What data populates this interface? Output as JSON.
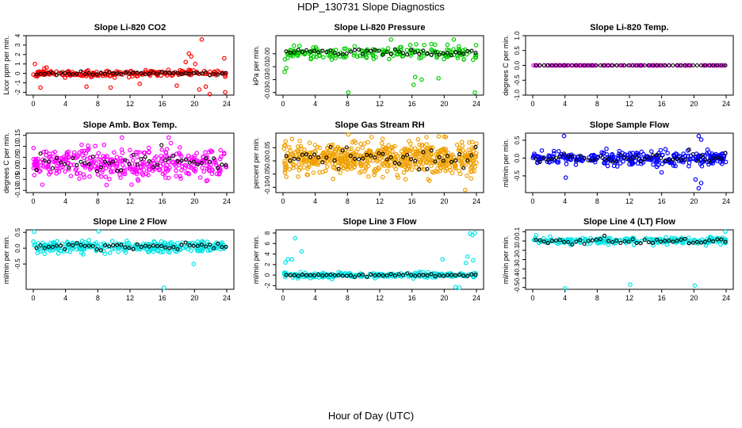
{
  "page": {
    "title": "HDP_130731  Slope Diagnostics",
    "xlabel": "Hour of Day (UTC)"
  },
  "chart_data": [
    {
      "type": "scatter",
      "title": "Slope Li-820 CO2",
      "ylabel": "Licor ppm per min.",
      "xlim": [
        0,
        24
      ],
      "ylim": [
        -2.3,
        4.0
      ],
      "yticks": [
        -2,
        -1,
        0,
        1,
        2,
        3,
        4
      ],
      "xticks": [
        0,
        4,
        8,
        12,
        16,
        20,
        24
      ],
      "color": "#ff0000",
      "base": 0,
      "spread": 0.35,
      "overlay_spread": 0.15,
      "outliers": [
        [
          0.2,
          1.0
        ],
        [
          0.9,
          -1.5
        ],
        [
          6.6,
          -1.4
        ],
        [
          9.6,
          -1.5
        ],
        [
          13.2,
          -1.1
        ],
        [
          17.8,
          -1.3
        ],
        [
          18.9,
          1.2
        ],
        [
          19.3,
          2.1
        ],
        [
          19.6,
          1.8
        ],
        [
          20.1,
          1.0
        ],
        [
          20.6,
          -1.7
        ],
        [
          20.9,
          3.6
        ],
        [
          21.4,
          -1.4
        ],
        [
          21.9,
          -2.2
        ],
        [
          23.7,
          1.6
        ],
        [
          23.8,
          -2.0
        ]
      ],
      "n": 220,
      "seed": 11
    },
    {
      "type": "scatter",
      "title": "Slope Li-820 Pressure",
      "ylabel": "kPa per min.",
      "xlim": [
        0,
        24
      ],
      "ylim": [
        -0.032,
        0.014
      ],
      "yticks": [
        -0.03,
        -0.02,
        -0.01,
        0.0
      ],
      "ytick_labels": [
        "-0.03",
        "-0.02",
        "-0.01",
        "0.00"
      ],
      "xticks": [
        0,
        4,
        8,
        12,
        16,
        20,
        24
      ],
      "color": "#00cc00",
      "base": 0.001,
      "spread": 0.005,
      "overlay_spread": 0.002,
      "outliers": [
        [
          0.2,
          -0.014
        ],
        [
          0.4,
          -0.011
        ],
        [
          8.1,
          -0.03
        ],
        [
          16.2,
          -0.024
        ],
        [
          16.4,
          -0.018
        ],
        [
          17.2,
          -0.02
        ],
        [
          19.3,
          -0.019
        ],
        [
          23.8,
          -0.03
        ],
        [
          13.4,
          0.011
        ],
        [
          21.2,
          0.011
        ]
      ],
      "n": 200,
      "seed": 23
    },
    {
      "type": "scatter",
      "title": "Slope Li-820 Temp.",
      "ylabel": "degrees C per min.",
      "xlim": [
        0,
        24
      ],
      "ylim": [
        -1.0,
        1.0
      ],
      "yticks": [
        -1.0,
        -0.5,
        0.0,
        0.5,
        1.0
      ],
      "ytick_labels": [
        "-1.0",
        "-0.5",
        "0.0",
        "0.5",
        "1.0"
      ],
      "xticks": [
        0,
        4,
        8,
        12,
        16,
        20,
        24
      ],
      "color": "#ff00ff",
      "base": 0,
      "spread": 0.0,
      "overlay_spread": 0.0,
      "outliers": [],
      "n": 120,
      "seed": 31
    },
    {
      "type": "scatter",
      "title": "Slope Amb. Box Temp.",
      "ylabel": "degrees C per min.",
      "xlim": [
        0,
        24
      ],
      "ylim": [
        -0.11,
        0.16
      ],
      "yticks": [
        -0.1,
        -0.05,
        0.0,
        0.05,
        0.1,
        0.15
      ],
      "ytick_labels": [
        "-0.10",
        "-0.05",
        "0.00",
        "0.05",
        "0.10",
        "0.15"
      ],
      "xticks": [
        0,
        4,
        8,
        12,
        16,
        20,
        24
      ],
      "color": "#ff00ff",
      "base": 0.02,
      "spread": 0.07,
      "overlay_spread": 0.05,
      "outliers": [
        [
          11.0,
          0.14
        ],
        [
          16.8,
          0.14
        ]
      ],
      "n": 380,
      "seed": 47
    },
    {
      "type": "scatter",
      "title": "Slope Gas Stream RH",
      "ylabel": "percent per min.",
      "xlim": [
        0,
        24
      ],
      "ylim": [
        -0.12,
        0.105
      ],
      "yticks": [
        -0.1,
        -0.05,
        0.0,
        0.05
      ],
      "ytick_labels": [
        "-0.10",
        "-0.05",
        "0.00",
        "0.05"
      ],
      "xticks": [
        0,
        4,
        8,
        12,
        16,
        20,
        24
      ],
      "color": "#f0a000",
      "base": 0.01,
      "spread": 0.06,
      "overlay_spread": 0.04,
      "outliers": [
        [
          8.1,
          0.1
        ],
        [
          11.0,
          0.09
        ],
        [
          17.8,
          0.09
        ],
        [
          20.2,
          0.09
        ],
        [
          22.6,
          -0.11
        ]
      ],
      "n": 600,
      "seed": 53
    },
    {
      "type": "scatter",
      "title": "Slope Sample Flow",
      "ylabel": "ml/min per min.",
      "xlim": [
        0,
        24
      ],
      "ylim": [
        -0.97,
        0.7
      ],
      "yticks": [
        -0.5,
        0.0,
        0.5
      ],
      "ytick_labels": [
        "-0.5",
        "0.0",
        "0.5"
      ],
      "xticks": [
        0,
        4,
        8,
        12,
        16,
        20,
        24
      ],
      "color": "#0000ff",
      "base": 0.0,
      "spread": 0.2,
      "overlay_spread": 0.15,
      "outliers": [
        [
          3.9,
          0.62
        ],
        [
          20.6,
          0.62
        ],
        [
          20.9,
          0.52
        ],
        [
          20.6,
          -0.85
        ],
        [
          20.9,
          -0.7
        ],
        [
          4.1,
          -0.55
        ],
        [
          20.2,
          -0.6
        ]
      ],
      "n": 320,
      "seed": 61
    },
    {
      "type": "scatter",
      "title": "Slope Line 2 Flow",
      "ylabel": "ml/min per min.",
      "xlim": [
        0,
        24
      ],
      "ylim": [
        -1.3,
        0.58
      ],
      "yticks": [
        -0.5,
        0.0,
        0.5
      ],
      "ytick_labels": [
        "-0.5",
        "0.0",
        "0.5"
      ],
      "xticks": [
        0,
        4,
        8,
        12,
        16,
        20,
        24
      ],
      "color": "#00e5e5",
      "base": 0.05,
      "spread": 0.18,
      "overlay_spread": 0.1,
      "outliers": [
        [
          0.1,
          0.52
        ],
        [
          8.1,
          0.53
        ],
        [
          16.2,
          -1.25
        ],
        [
          19.9,
          -0.5
        ]
      ],
      "n": 300,
      "seed": 71
    },
    {
      "type": "scatter",
      "title": "Slope Line 3 Flow",
      "ylabel": "ml/min per min.",
      "xlim": [
        0,
        24
      ],
      "ylim": [
        -2.7,
        8.6
      ],
      "yticks": [
        -2,
        0,
        2,
        4,
        6,
        8
      ],
      "ytick_labels": [
        "-2",
        "0",
        "2",
        "4",
        "6",
        "8"
      ],
      "xticks": [
        0,
        4,
        8,
        12,
        16,
        20,
        24
      ],
      "color": "#00e5e5",
      "base": 0.0,
      "spread": 0.45,
      "overlay_spread": 0.3,
      "outliers": [
        [
          0.3,
          2.4
        ],
        [
          0.6,
          3.0
        ],
        [
          1.1,
          3.0
        ],
        [
          1.5,
          7.0
        ],
        [
          2.3,
          4.5
        ],
        [
          19.8,
          3.0
        ],
        [
          21.4,
          -2.3
        ],
        [
          21.9,
          -2.4
        ],
        [
          22.7,
          2.3
        ],
        [
          22.9,
          3.5
        ],
        [
          23.2,
          7.9
        ],
        [
          23.5,
          7.6
        ],
        [
          23.8,
          8.0
        ],
        [
          23.6,
          2.8
        ]
      ],
      "n": 260,
      "seed": 83
    },
    {
      "type": "scatter",
      "title": "Slope Line 4 (LT) Flow",
      "ylabel": "ml/min per min.",
      "xlim": [
        0,
        24
      ],
      "ylim": [
        -0.52,
        0.12
      ],
      "yticks": [
        -0.5,
        -0.4,
        -0.3,
        -0.2,
        -0.1,
        0.0,
        0.1
      ],
      "ytick_labels": [
        "-0.5",
        "-0.4",
        "-0.3",
        "-0.2",
        "-0.1",
        "0.0",
        "0.1"
      ],
      "xticks": [
        0,
        4,
        8,
        12,
        16,
        20,
        24
      ],
      "color": "#00e5e5",
      "base": 0.0,
      "spread": 0.04,
      "overlay_spread": 0.03,
      "outliers": [
        [
          4.0,
          -0.51
        ],
        [
          12.1,
          -0.47
        ],
        [
          20.1,
          -0.48
        ],
        [
          23.9,
          0.1
        ]
      ],
      "n": 260,
      "seed": 97
    }
  ]
}
